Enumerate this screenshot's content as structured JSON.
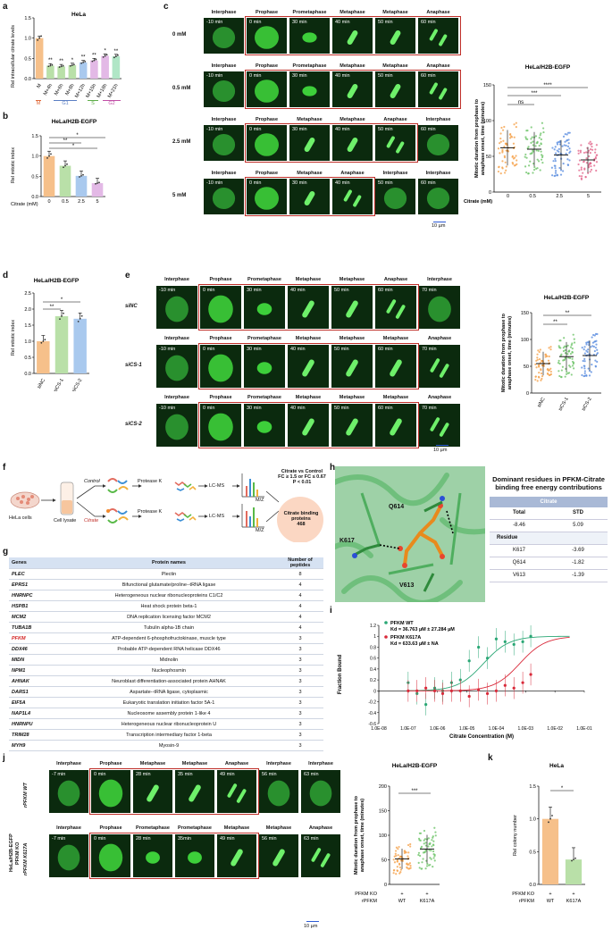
{
  "labels": {
    "a": "a",
    "b": "b",
    "c": "c",
    "d": "d",
    "e": "e",
    "f": "f",
    "g": "g",
    "h": "h",
    "i": "i",
    "j": "j",
    "k": "k"
  },
  "colors": {
    "green": "#3dcf3a",
    "cellbg": "#0b2a0e",
    "red": "#c0302a",
    "orange": "#f6c08a",
    "gbar": "#b9e0a8",
    "bbar": "#a9c9ee",
    "pbar": "#e3b9e6",
    "mint": "#b0e6c6",
    "rose": "#f3c1c9"
  },
  "panel_a": {
    "title": "HeLa",
    "ylabel": "Rel intracellular citrate levels",
    "chart_data": {
      "type": "bar",
      "categories": [
        "M",
        "M+4h",
        "M+6h",
        "M+8h",
        "M+12h",
        "M+15h",
        "M+18h",
        "M+21h"
      ],
      "values": [
        1.0,
        0.32,
        0.3,
        0.33,
        0.4,
        0.45,
        0.56,
        0.55
      ],
      "ylim": [
        0,
        1.5
      ],
      "yticks": [
        "0.0",
        "0.5",
        "1.0",
        "1.5"
      ],
      "stars": [
        "",
        "**",
        "**",
        "*",
        "**",
        "**",
        "*",
        "**"
      ]
    },
    "phases": [
      {
        "t": "M",
        "c": "#e06a3a"
      },
      {
        "t": "G1",
        "c": "#5b7fc4"
      },
      {
        "t": "S",
        "c": "#5fae4a"
      },
      {
        "t": "G2",
        "c": "#c24fa7"
      }
    ]
  },
  "panel_b": {
    "title": "HeLa/H2B-EGFP",
    "ylabel": "Rel mitotic index",
    "xlabel": "Citrate (mM)",
    "chart_data": {
      "type": "bar",
      "categories": [
        "0",
        "0.5",
        "2.5",
        "5"
      ],
      "values": [
        1.0,
        0.76,
        0.51,
        0.33
      ],
      "ylim": [
        0,
        1.5
      ],
      "yticks": [
        "0.0",
        "0.5",
        "1.0",
        "1.5"
      ],
      "sig": [
        "*",
        "**",
        "*"
      ]
    }
  },
  "panel_c": {
    "row_labels": [
      "0 mM",
      "0.5 mM",
      "2.5 mM",
      "5 mM"
    ],
    "stages": [
      [
        "Interphase",
        "Prophase",
        "Prometaphase",
        "Metaphase",
        "Metaphase",
        "Anaphase"
      ],
      [
        "Interphase",
        "Prophase",
        "Prometaphase",
        "Metaphase",
        "Metaphase",
        "Anaphase"
      ],
      [
        "Interphase",
        "Prophase",
        "Metaphase",
        "Metaphase",
        "Anaphase",
        "Interphase"
      ],
      [
        "Interphase",
        "Prophase",
        "Metaphase",
        "Anaphase",
        "Interphase",
        "Interphase"
      ]
    ],
    "times": [
      [
        "-10 min",
        "0 min",
        "30 min",
        "40 min",
        "50 min",
        "60 min"
      ],
      [
        "-10 min",
        "0 min",
        "30 min",
        "40 min",
        "50 min",
        "60 min"
      ],
      [
        "-10 min",
        "0 min",
        "30 min",
        "40 min",
        "50 min",
        "60 min"
      ],
      [
        "-10 min",
        "0 min",
        "30 min",
        "40 min",
        "50 min",
        "60 min"
      ]
    ],
    "scale": "10 µm",
    "chart": {
      "title": "HeLa/H2B-EGFP",
      "ylabel": "Mitotic duration from prophase to anaphase onset, time (minutes)",
      "xlabel": "Citrate (mM)",
      "categories": [
        "0",
        "0.5",
        "2.5",
        "5"
      ],
      "means": [
        62,
        60,
        52,
        45
      ],
      "ylim": [
        0,
        150
      ],
      "yticks": [
        "0",
        "50",
        "100",
        "150"
      ],
      "sig": [
        "ns",
        "***",
        "****"
      ]
    }
  },
  "panel_d": {
    "title": "HeLa/H2B-EGFP",
    "ylabel": "Rel mitotic index",
    "chart_data": {
      "type": "bar",
      "categories": [
        "siNC",
        "siCS-1",
        "siCS-2"
      ],
      "values": [
        1.0,
        1.78,
        1.7
      ],
      "ylim": [
        0,
        2.5
      ],
      "yticks": [
        "0.0",
        "0.5",
        "1.0",
        "1.5",
        "2.0",
        "2.5"
      ],
      "sig": [
        "**",
        "*"
      ]
    }
  },
  "panel_e": {
    "row_labels": [
      "siNC",
      "siCS-1",
      "siCS-2"
    ],
    "stages": [
      [
        "Interphase",
        "Prophase",
        "Prometaphase",
        "Metaphase",
        "Metaphase",
        "Anaphase",
        "Interphase"
      ],
      [
        "Interphase",
        "Prophase",
        "Prometaphase",
        "Metaphase",
        "Metaphase",
        "Metaphase",
        "Anaphase"
      ],
      [
        "Interphase",
        "Prophase",
        "Prometaphase",
        "Metaphase",
        "Metaphase",
        "Metaphase",
        "Anaphase"
      ]
    ],
    "times": [
      "-10 min",
      "0 min",
      "30 min",
      "40 min",
      "50 min",
      "60 min",
      "70 min"
    ],
    "scale": "10 µm",
    "chart": {
      "title": "HeLa/H2B-EGFP",
      "ylabel": "Mitotic duration from prophase to anaphase onset, time (minutes)",
      "categories": [
        "siNC",
        "siCS-1",
        "siCS-2"
      ],
      "means": [
        55,
        68,
        70
      ],
      "ylim": [
        0,
        150
      ],
      "yticks": [
        "0",
        "50",
        "100",
        "150"
      ],
      "sig": [
        "**",
        "**"
      ]
    }
  },
  "panel_f": {
    "hela": "HeLa cells",
    "lysate": "Cell lysate",
    "control": "Control",
    "citrate": "Citrate",
    "protease": "Protease K",
    "lcms": "LC-MS",
    "mz": "M/Z",
    "criteria": [
      "Citrate vs Control",
      "FC ≥ 1.5 or FC ≤ 0.67",
      "P < 0.01"
    ],
    "result": [
      "Citrate binding",
      "proteins",
      "468"
    ]
  },
  "panel_g": {
    "headers": [
      "Genes",
      "Protein names",
      "Number of peptides"
    ],
    "rows": [
      [
        "PLEC",
        "Plectin",
        "8"
      ],
      [
        "EPRS1",
        "Bifunctional glutamate/proline--tRNA ligase",
        "4"
      ],
      [
        "HNRNPC",
        "Heterogeneous nuclear ribonucleoproteins C1/C2",
        "4"
      ],
      [
        "HSPB1",
        "Heat shock protein beta-1",
        "4"
      ],
      [
        "MCM2",
        "DNA replication licensing factor MCM2",
        "4"
      ],
      [
        "TUBA1B",
        "Tubulin alpha-1B chain",
        "4"
      ],
      [
        "PFKM",
        "ATP-dependent 6-phosphofructokinase, muscle type",
        "3"
      ],
      [
        "DDX46",
        "Probable ATP-dependent RNA helicase DDX46",
        "3"
      ],
      [
        "MIDN",
        "Midnolin",
        "3"
      ],
      [
        "NPM1",
        "Nucleophosmin",
        "3"
      ],
      [
        "AHNAK",
        "Neuroblast differentiation-associated protein AHNAK",
        "3"
      ],
      [
        "DARS1",
        "Aspartate--tRNA ligase, cytoplasmic",
        "3"
      ],
      [
        "EIF5A",
        "Eukaryotic translation initiation factor 5A-1",
        "3"
      ],
      [
        "NAP1L4",
        "Nucleosome assembly protein 1-like 4",
        "3"
      ],
      [
        "HNRNPU",
        "Heterogeneous nuclear ribonucleoprotein U",
        "3"
      ],
      [
        "TRIM28",
        "Transcription intermediary factor 1-beta",
        "3"
      ],
      [
        "MYH9",
        "Myosin-9",
        "3"
      ]
    ]
  },
  "panel_h": {
    "residues": [
      "Q614",
      "K617",
      "V613"
    ],
    "table_title": "Dominant residues in PFKM-Citrate binding free energy contributions",
    "table": {
      "header": "Citrate",
      "cols": [
        "Total",
        "STD"
      ],
      "vals": [
        "-8.46",
        "5.09"
      ],
      "residue_label": "Residue",
      "rows": [
        [
          "K617",
          "-3.69"
        ],
        [
          "Q614",
          "-1.82"
        ],
        [
          "V613",
          "-1.39"
        ]
      ]
    }
  },
  "panel_i": {
    "ylabel": "Fraction Bound",
    "xlabel": "Citrate Concentration (M)",
    "legend": [
      {
        "name": "PFKM WT",
        "kd": "Kd = 36.763 µM ± 27.284 µM"
      },
      {
        "name": "PFKM K617A",
        "kd": "Kd = 633.63 µM ± NA"
      }
    ],
    "chart_data": {
      "type": "scatter",
      "xticks": [
        "1.0E-08",
        "1.0E-07",
        "1.0E-06",
        "1.0E-05",
        "1.0E-04",
        "1.0E-03",
        "1.0E-02",
        "1.0E-01"
      ],
      "yticks": [
        "-0.6",
        "-0.4",
        "-0.2",
        "0",
        "0.2",
        "0.4",
        "0.6",
        "0.8",
        "1",
        "1.2"
      ],
      "ylim": [
        -0.6,
        1.2
      ],
      "series": [
        {
          "name": "PFKM WT",
          "x": [
            1e-07,
            2e-07,
            4e-07,
            8e-07,
            1.5e-06,
            3e-06,
            6e-06,
            1.2e-05,
            2.5e-05,
            5e-05,
            0.0001,
            0.0002,
            0.0004,
            0.0008,
            0.0015
          ],
          "y": [
            0.15,
            -0.05,
            -0.25,
            0.05,
            0.0,
            0.15,
            0.2,
            0.55,
            0.8,
            0.6,
            0.95,
            0.9,
            0.85,
            0.9,
            1.0
          ]
        },
        {
          "name": "PFKM K617A",
          "x": [
            1e-07,
            2e-07,
            4e-07,
            8e-07,
            1.5e-06,
            3e-06,
            6e-06,
            1.2e-05,
            2.5e-05,
            5e-05,
            0.0001,
            0.0002,
            0.0004,
            0.0008,
            0.0015
          ],
          "y": [
            0.0,
            0.0,
            0.05,
            0.0,
            -0.05,
            0.0,
            0.0,
            -0.1,
            0.02,
            -0.05,
            0.0,
            0.1,
            0.05,
            0.15,
            0.3
          ]
        }
      ]
    }
  },
  "panel_j": {
    "side": [
      "HeLa/H2B-EGFP",
      "PFKM KO"
    ],
    "row_labels": [
      "rPFKM WT",
      "rPFKM K617A"
    ],
    "stages": [
      [
        "Interphase",
        "Prophase",
        "Metaphase",
        "Metaphase",
        "Anaphase",
        "Interphase",
        "Interphase"
      ],
      [
        "Interphase",
        "Prophase",
        "Prometaphase",
        "Prometaphase",
        "Metaphase",
        "Metaphase",
        "Anaphase"
      ]
    ],
    "times": [
      [
        "-7 min",
        "0 min",
        "28 min",
        "35 min",
        "49 min",
        "56 min",
        "63 min"
      ],
      [
        "-7 min",
        "0 min",
        "28 min",
        "35min",
        "49 min",
        "56 min",
        "63 min"
      ]
    ],
    "scale": "10 µm",
    "chart": {
      "title": "HeLa/H2B-EGFP",
      "ylabel": "Mitotic duration from prophase to anaphase onset, time (minutes)",
      "rows": [
        [
          "PFKM KO",
          "+",
          "+"
        ],
        [
          "rPFKM",
          "WT",
          "K617A"
        ]
      ],
      "means": [
        52,
        72
      ],
      "ylim": [
        0,
        200
      ],
      "yticks": [
        "0",
        "50",
        "100",
        "150",
        "200"
      ],
      "sig": "***"
    }
  },
  "panel_k": {
    "title": "HeLa",
    "ylabel": "Rel colony number",
    "rows": [
      [
        "PFKM KO",
        "+",
        "+"
      ],
      [
        "rPFKM",
        "WT",
        "K617A"
      ]
    ],
    "chart_data": {
      "type": "bar",
      "categories": [
        "WT",
        "K617A"
      ],
      "values": [
        1.0,
        0.38
      ],
      "ylim": [
        0,
        1.5
      ],
      "yticks": [
        "0.0",
        "0.5",
        "1.0",
        "1.5"
      ],
      "sig": "*"
    }
  }
}
